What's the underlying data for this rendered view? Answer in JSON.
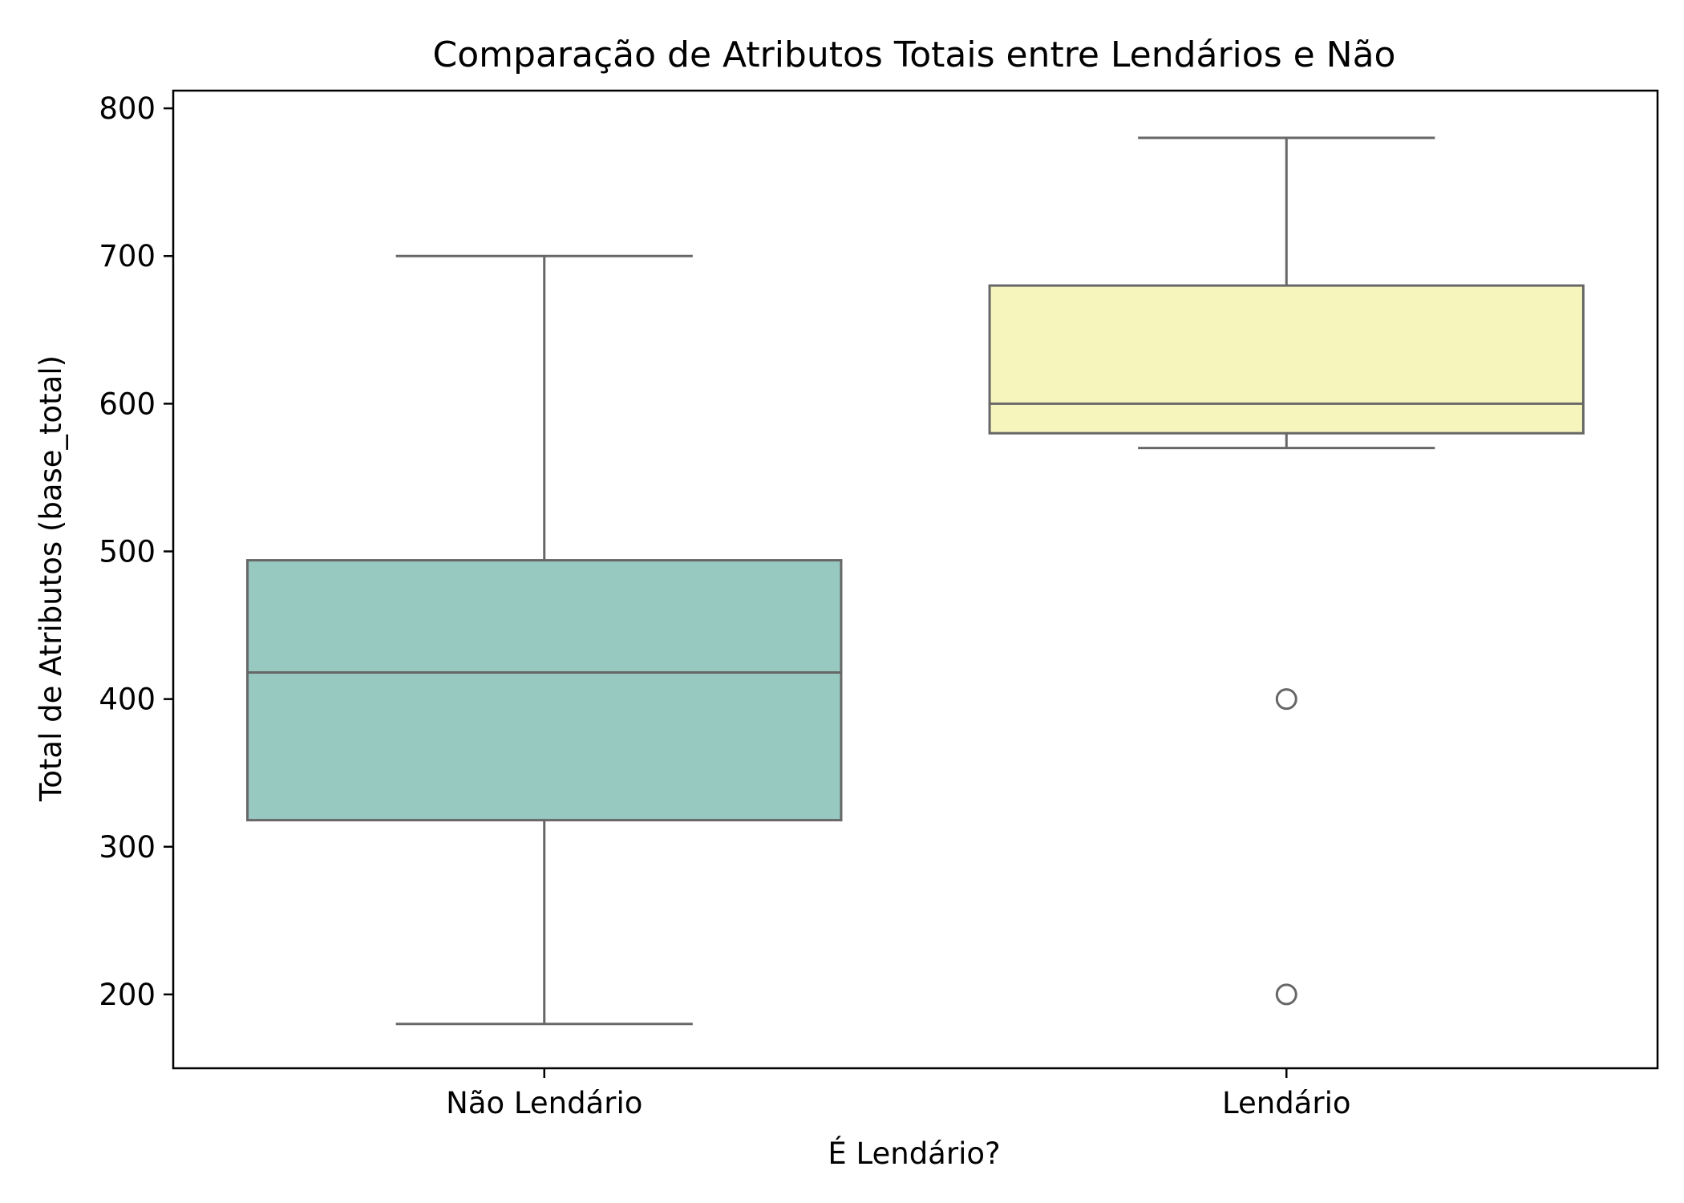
{
  "chart_data": {
    "type": "box",
    "title": "Comparação de Atributos Totais entre Lendários e Não",
    "xlabel": "É Lendário?",
    "ylabel": "Total de Atributos (base_total)",
    "categories": [
      "Não Lendário",
      "Lendário"
    ],
    "ylim": [
      150,
      812
    ],
    "yticks": [
      200,
      300,
      400,
      500,
      600,
      700,
      800
    ],
    "grid": false,
    "boxes": [
      {
        "category": "Não Lendário",
        "whisker_low": 180,
        "q1": 318,
        "median": 418,
        "q3": 494,
        "whisker_high": 700,
        "outliers": [],
        "color": "#98c9c1"
      },
      {
        "category": "Lendário",
        "whisker_low": 570,
        "q1": 580,
        "median": 600,
        "q3": 680,
        "whisker_high": 780,
        "outliers": [
          400,
          200
        ],
        "color": "#f6f5bb"
      }
    ],
    "line_color": "#676767"
  }
}
